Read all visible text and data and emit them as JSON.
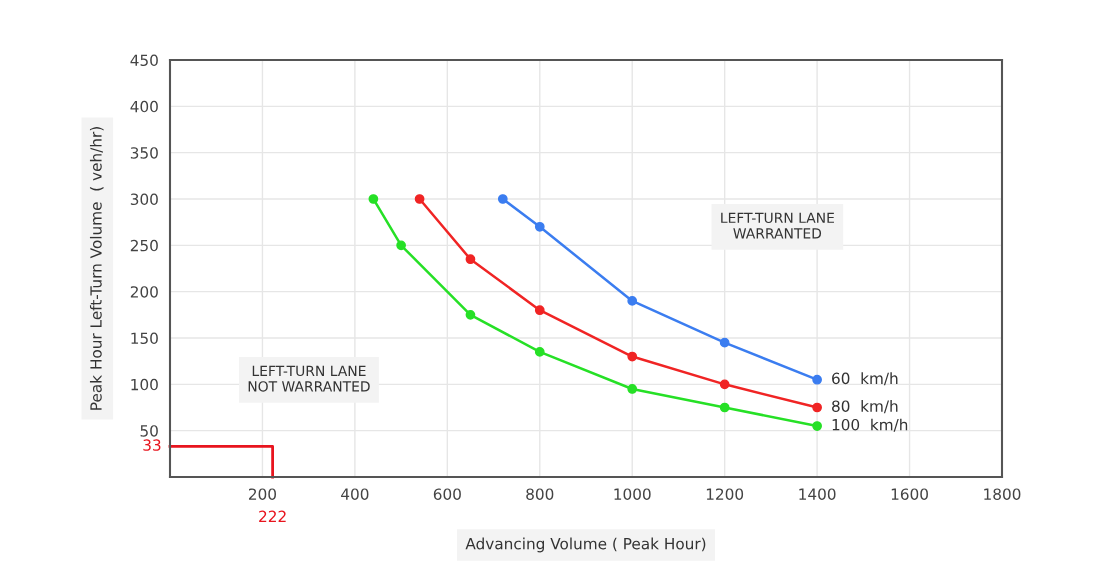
{
  "chart_data": {
    "type": "line",
    "xlabel": "Advancing Volume ( Peak Hour)",
    "ylabel": "Peak Hour Left-Turn Volume  ( veh/hr)",
    "xlim": [
      0,
      1800
    ],
    "xticks": [
      200,
      400,
      600,
      800,
      1000,
      1200,
      1400,
      1600,
      1800
    ],
    "ylim": [
      0,
      450
    ],
    "yticks": [
      50,
      100,
      150,
      200,
      250,
      300,
      350,
      400,
      450
    ],
    "grid": true,
    "marker": "circle",
    "line_style": "solid",
    "legend": false,
    "series": [
      {
        "name": "60  km/h",
        "color": "#3b7df0",
        "x": [
          720,
          800,
          1000,
          1200,
          1400
        ],
        "values": [
          300,
          270,
          190,
          145,
          105
        ]
      },
      {
        "name": "80  km/h",
        "color": "#f02424",
        "x": [
          540,
          650,
          800,
          1000,
          1200,
          1400
        ],
        "values": [
          300,
          235,
          180,
          130,
          100,
          75
        ]
      },
      {
        "name": "100  km/h",
        "color": "#26e026",
        "x": [
          440,
          500,
          650,
          800,
          1000,
          1200,
          1400
        ],
        "values": [
          300,
          250,
          175,
          135,
          95,
          75,
          55
        ]
      },
      {
        "color": "#e8141e",
        "marker": "none",
        "x": [
          0,
          222,
          222
        ],
        "values": [
          33,
          33,
          0
        ]
      }
    ],
    "annotations": [
      "LEFT-TURN LANE\nWARRANTED",
      "LEFT-TURN LANE\nNOT WARRANTED",
      {
        "text": "33",
        "x": 0,
        "y": 33
      },
      {
        "text": "222",
        "x": 222,
        "y": 0
      }
    ]
  }
}
